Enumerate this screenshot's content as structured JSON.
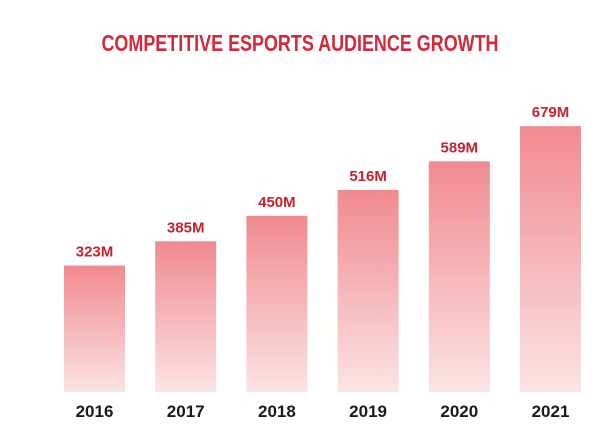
{
  "chart_data": {
    "type": "bar",
    "title": "COMPETITIVE ESPORTS AUDIENCE GROWTH",
    "categories": [
      "2016",
      "2017",
      "2018",
      "2019",
      "2020",
      "2021"
    ],
    "values": [
      323,
      385,
      450,
      516,
      589,
      679
    ],
    "data_labels": [
      "323M",
      "385M",
      "450M",
      "516M",
      "589M",
      "679M"
    ],
    "unit": "M",
    "xlabel": "",
    "ylabel": "",
    "grid": false,
    "legend": "none",
    "colors": {
      "bar_top": "#f08a8f",
      "bar_bottom": "#fbe3e4",
      "value_label": "#c8202f",
      "title": "#d4293a",
      "category_label": "#1a1a1a"
    }
  }
}
